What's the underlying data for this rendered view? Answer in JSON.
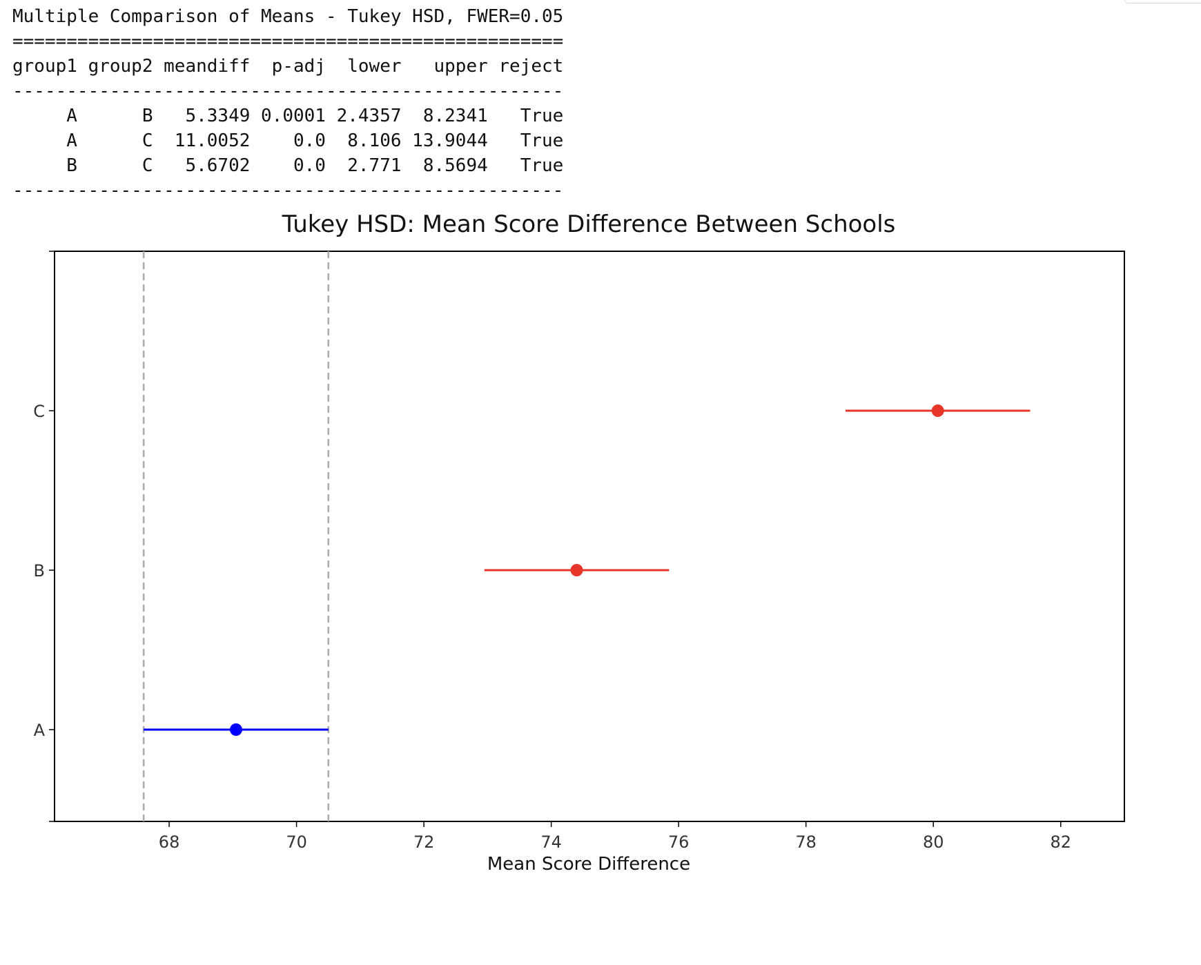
{
  "summary_table": {
    "title": "Multiple Comparison of Means - Tukey HSD, FWER=0.05",
    "columns": [
      "group1",
      "group2",
      "meandiff",
      "p-adj",
      "lower",
      "upper",
      "reject"
    ],
    "rows": [
      [
        "A",
        "B",
        "5.3349",
        "0.0001",
        "2.4357",
        "8.2341",
        "True"
      ],
      [
        "A",
        "C",
        "11.0052",
        "0.0",
        "8.106",
        "13.9044",
        "True"
      ],
      [
        "B",
        "C",
        "5.6702",
        "0.0",
        "2.771",
        "8.5694",
        "True"
      ]
    ]
  },
  "chart_data": {
    "type": "scatter",
    "title": "Tukey HSD: Mean Score Difference Between Schools",
    "xlabel": "Mean Score Difference",
    "ylabel": "",
    "categories": [
      "A",
      "B",
      "C"
    ],
    "x_ticks": [
      68,
      70,
      72,
      74,
      76,
      78,
      80,
      82
    ],
    "xlim": [
      66.2,
      83.0
    ],
    "grid": false,
    "points": [
      {
        "group": "A",
        "mean": 69.05,
        "lower": 67.6,
        "upper": 70.5,
        "color": "#0000ff"
      },
      {
        "group": "B",
        "mean": 74.4,
        "lower": 72.95,
        "upper": 75.85,
        "color": "#e8352a"
      },
      {
        "group": "C",
        "mean": 80.07,
        "lower": 78.62,
        "upper": 81.52,
        "color": "#e8352a"
      }
    ],
    "reference_lines": [
      67.6,
      70.5
    ],
    "reference_color": "#aaaaaa"
  }
}
